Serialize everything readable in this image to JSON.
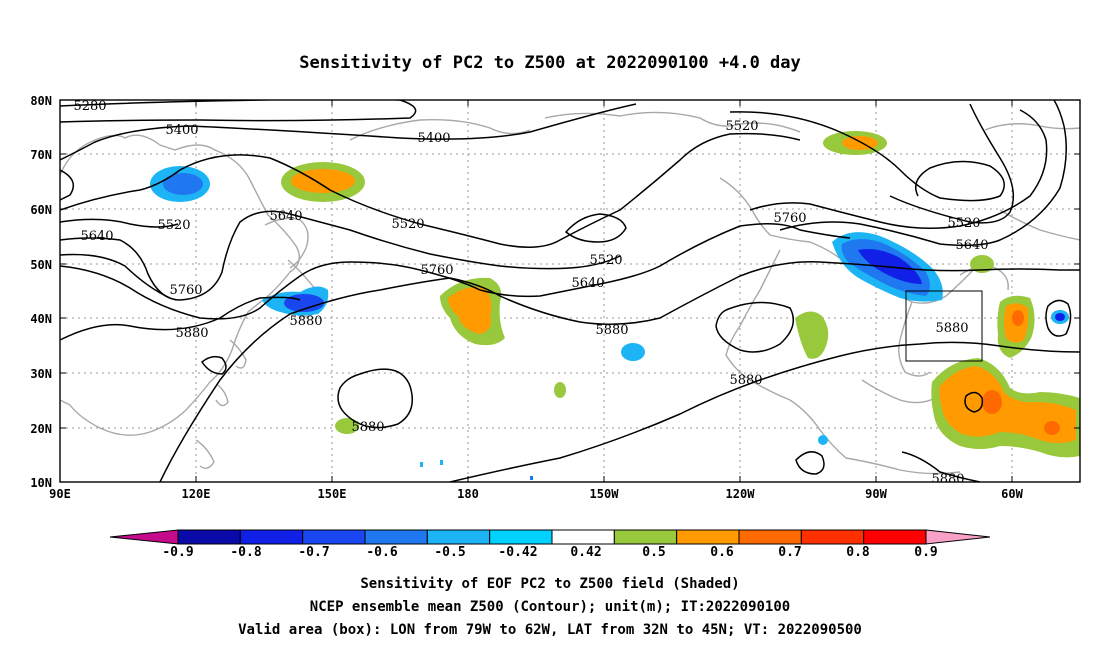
{
  "title": "Sensitivity of PC2 to Z500 at 2022090100 +4.0 day",
  "lat_labels": [
    "80N",
    "70N",
    "60N",
    "50N",
    "40N",
    "30N",
    "20N",
    "10N"
  ],
  "lon_labels": [
    "90E",
    "120E",
    "150E",
    "180",
    "150W",
    "120W",
    "90W",
    "60W"
  ],
  "contour_labels": [
    {
      "text": "5280"
    },
    {
      "text": "5400"
    },
    {
      "text": "5400"
    },
    {
      "text": "5520"
    },
    {
      "text": "5520"
    },
    {
      "text": "5520"
    },
    {
      "text": "5520"
    },
    {
      "text": "5520"
    },
    {
      "text": "5640"
    },
    {
      "text": "5640"
    },
    {
      "text": "5640"
    },
    {
      "text": "5640"
    },
    {
      "text": "5760"
    },
    {
      "text": "5760"
    },
    {
      "text": "5760"
    },
    {
      "text": "5880"
    },
    {
      "text": "5880"
    },
    {
      "text": "5880"
    },
    {
      "text": "5880"
    },
    {
      "text": "5880"
    },
    {
      "text": "5880"
    }
  ],
  "colorbar": {
    "labels": [
      "-0.9",
      "-0.8",
      "-0.7",
      "-0.6",
      "-0.5",
      "-0.42",
      "0.42",
      "0.5",
      "0.6",
      "0.7",
      "0.8",
      "0.9"
    ],
    "colors": [
      "#c40b8c",
      "#0a0aa8",
      "#1020e6",
      "#1a46f0",
      "#1f78f0",
      "#1cb4f5",
      "#00d2ff",
      "#ffffff",
      "#98c83c",
      "#ff9a00",
      "#ff6a00",
      "#ff3000",
      "#ff0000",
      "#f7a0c8"
    ]
  },
  "caption": {
    "line1": "Sensitivity of EOF PC2 to Z500 field (Shaded)",
    "line2": "NCEP ensemble mean Z500 (Contour); unit(m); IT:2022090100",
    "line3": "Valid area (box): LON from 79W to 62W, LAT from 32N to 45N; VT: 2022090500"
  },
  "valid_box": {
    "lon_min": "79W",
    "lon_max": "62W",
    "lat_min": "32N",
    "lat_max": "45N"
  },
  "legend_colors": {
    "neg_strong": "#0a0aa8",
    "neg_mid": "#1a46f0",
    "neg_light": "#1cb4f5",
    "pos_light": "#98c83c",
    "pos_mid": "#ff9a00",
    "pos_strong": "#ff6a00"
  }
}
